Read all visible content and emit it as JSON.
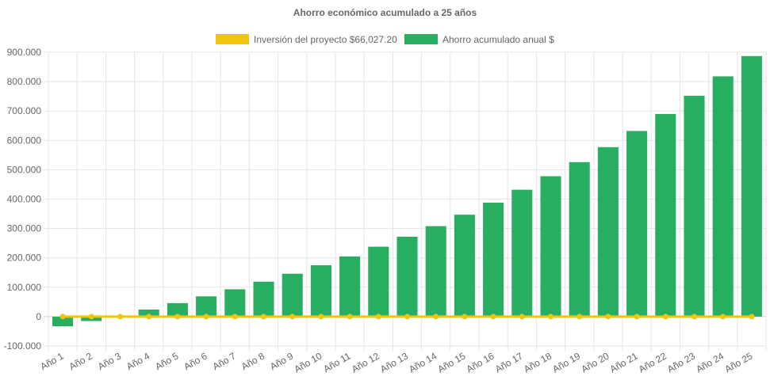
{
  "chart_data": {
    "type": "bar",
    "title": "Ahorro económico acumulado a 25 años",
    "categories": [
      "Año 1",
      "Año 2",
      "Año 3",
      "Año 4",
      "Año 5",
      "Año 6",
      "Año 7",
      "Año 8",
      "Año 9",
      "Año 10",
      "Año 11",
      "Año 12",
      "Año 13",
      "Año 14",
      "Año 15",
      "Año 16",
      "Año 17",
      "Año 18",
      "Año 19",
      "Año 20",
      "Año 21",
      "Año 22",
      "Año 23",
      "Año 24",
      "Año 25"
    ],
    "series": [
      {
        "name": "Inversión del proyecto $66,027.20",
        "type": "line",
        "color": "#f1c40f",
        "values": [
          0,
          0,
          0,
          0,
          0,
          0,
          0,
          0,
          0,
          0,
          0,
          0,
          0,
          0,
          0,
          0,
          0,
          0,
          0,
          0,
          0,
          0,
          0,
          0,
          0
        ]
      },
      {
        "name": "Ahorro acumulado anual $",
        "type": "bar",
        "color": "#27ae60",
        "values": [
          -33000,
          -15000,
          3000,
          24000,
          46000,
          69000,
          93000,
          119000,
          146000,
          175000,
          205000,
          238000,
          272000,
          308000,
          347000,
          388000,
          432000,
          478000,
          526000,
          577000,
          632000,
          690000,
          752000,
          818000,
          887000
        ]
      }
    ],
    "yticks": [
      "-100.000",
      "0",
      "100.000",
      "200.000",
      "300.000",
      "400.000",
      "500.000",
      "600.000",
      "700.000",
      "800.000",
      "900.000"
    ],
    "ylim": [
      -100000,
      900000
    ],
    "grid": true,
    "legend_position": "top"
  }
}
